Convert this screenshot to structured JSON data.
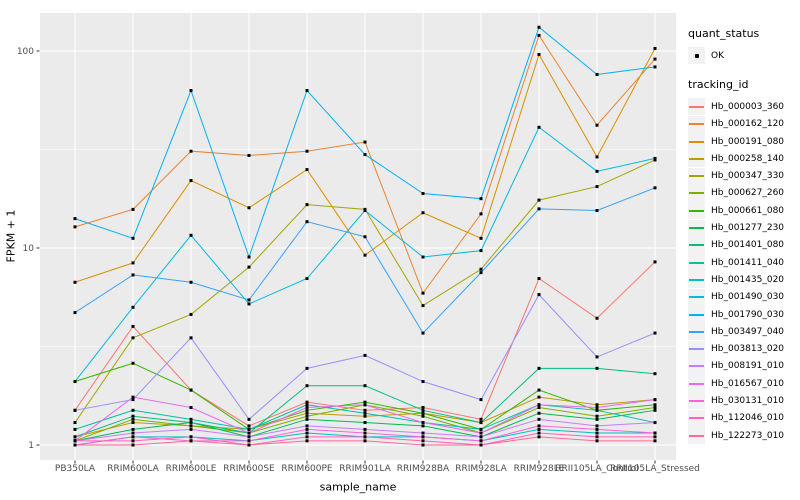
{
  "axes": {
    "x_title": "sample_name",
    "y_title": "FPKM + 1",
    "y_tick_labels": [
      "1",
      "10",
      "100"
    ]
  },
  "legend": {
    "quant_status_title": "quant_status",
    "ok_label": "OK",
    "ok_point_color": "#000000",
    "tracking_title": "tracking_id"
  },
  "panel": {
    "background_color": "#ebebeb",
    "gridline_color": "#ffffff",
    "tick_text_color": "#4d4d4d"
  },
  "chart_data": {
    "type": "line",
    "x": [
      "PB350LA",
      "RRIM600LA",
      "RRIM600LE",
      "RRIM600SE",
      "RRIM600PE",
      "RRIM901LA",
      "RRIM928BA",
      "RRIM928LA",
      "RRIM928LE",
      "RRII105LA_Control",
      "RRII105LA_Stressed"
    ],
    "xlabel": "sample_name",
    "ylabel": "FPKM + 1",
    "yscale": "log10",
    "yticks": [
      1,
      10,
      100
    ],
    "ylim": [
      0.85,
      155
    ],
    "grid": true,
    "legend_position": "right",
    "point_marker": "small black square (quant_status OK)",
    "series": [
      {
        "name": "Hb_000003_360",
        "color": "#F8766D",
        "values": [
          1.5,
          4.0,
          1.9,
          1.25,
          1.65,
          1.5,
          1.55,
          1.35,
          7.0,
          4.4,
          8.5
        ]
      },
      {
        "name": "Hb_000162_120",
        "color": "#EA8331",
        "values": [
          12.8,
          15.7,
          31,
          29.5,
          31,
          34.5,
          5.9,
          14.9,
          120,
          42,
          91
        ]
      },
      {
        "name": "Hb_000191_080",
        "color": "#D89000",
        "values": [
          6.7,
          8.4,
          22,
          16,
          25,
          9.2,
          15.1,
          11.2,
          96,
          29,
          103
        ]
      },
      {
        "name": "Hb_000258_140",
        "color": "#C09B00",
        "values": [
          1.1,
          1.3,
          1.25,
          1.2,
          1.45,
          1.4,
          1.45,
          1.3,
          1.75,
          1.6,
          1.7
        ]
      },
      {
        "name": "Hb_000347_330",
        "color": "#A3A500",
        "values": [
          1.3,
          3.5,
          4.6,
          8.0,
          16.6,
          15.7,
          5.1,
          7.8,
          17.5,
          20.5,
          28
        ]
      },
      {
        "name": "Hb_000627_260",
        "color": "#7CAE00",
        "values": [
          1.05,
          1.35,
          1.25,
          1.15,
          1.4,
          1.6,
          1.4,
          1.15,
          1.55,
          1.4,
          1.55
        ]
      },
      {
        "name": "Hb_000661_080",
        "color": "#39B600",
        "values": [
          2.1,
          2.6,
          1.9,
          1.2,
          1.5,
          1.65,
          1.45,
          1.2,
          1.9,
          1.5,
          1.6
        ]
      },
      {
        "name": "Hb_001277_230",
        "color": "#00BB4E",
        "values": [
          1.05,
          1.2,
          1.3,
          1.1,
          1.35,
          1.3,
          1.25,
          1.1,
          1.45,
          1.35,
          1.5
        ]
      },
      {
        "name": "Hb_001401_080",
        "color": "#00BF7D",
        "values": [
          1.1,
          1.4,
          1.3,
          1.15,
          2.0,
          2.0,
          1.5,
          1.3,
          2.45,
          2.45,
          2.3
        ]
      },
      {
        "name": "Hb_001411_040",
        "color": "#00C1A3",
        "values": [
          1.2,
          1.5,
          1.35,
          1.2,
          1.6,
          1.45,
          1.3,
          1.2,
          1.6,
          1.5,
          1.3
        ]
      },
      {
        "name": "Hb_001435_020",
        "color": "#00BFC4",
        "values": [
          1.0,
          1.1,
          1.1,
          1.05,
          1.15,
          1.1,
          1.1,
          1.05,
          1.2,
          1.15,
          1.15
        ]
      },
      {
        "name": "Hb_001490_030",
        "color": "#00BAE0",
        "values": [
          2.1,
          5.0,
          11.6,
          5.2,
          7.0,
          15.5,
          9.0,
          9.7,
          41,
          24.5,
          28.5
        ]
      },
      {
        "name": "Hb_001790_030",
        "color": "#00B0F6",
        "values": [
          14.1,
          11.2,
          63,
          9.0,
          63,
          29.8,
          18.9,
          17.8,
          132,
          76,
          83
        ]
      },
      {
        "name": "Hb_003497_040",
        "color": "#35A2FF",
        "values": [
          4.7,
          7.3,
          6.7,
          5.45,
          13.6,
          11.4,
          3.7,
          7.5,
          15.8,
          15.5,
          20.2
        ]
      },
      {
        "name": "Hb_003813_020",
        "color": "#9590FF",
        "values": [
          1.5,
          1.7,
          3.5,
          1.35,
          2.45,
          2.85,
          2.1,
          1.7,
          5.8,
          2.8,
          3.7
        ]
      },
      {
        "name": "Hb_008191_010",
        "color": "#C77CFF",
        "values": [
          1.05,
          1.15,
          1.2,
          1.1,
          1.25,
          1.2,
          1.15,
          1.1,
          1.35,
          1.25,
          1.3
        ]
      },
      {
        "name": "Hb_016567_010",
        "color": "#E76BF3",
        "values": [
          1.05,
          1.75,
          1.55,
          1.15,
          1.55,
          1.6,
          1.3,
          1.15,
          1.6,
          1.55,
          1.7
        ]
      },
      {
        "name": "Hb_030131_010",
        "color": "#FA62DB",
        "values": [
          1.0,
          1.1,
          1.05,
          1.05,
          1.2,
          1.15,
          1.1,
          1.05,
          1.25,
          1.2,
          1.15
        ]
      },
      {
        "name": "Hb_112046_010",
        "color": "#FF62BC",
        "values": [
          1.05,
          1.05,
          1.1,
          1.0,
          1.1,
          1.1,
          1.05,
          1.0,
          1.15,
          1.1,
          1.1
        ]
      },
      {
        "name": "Hb_122273_010",
        "color": "#FF6A98",
        "values": [
          1.0,
          1.0,
          1.05,
          1.0,
          1.05,
          1.05,
          1.0,
          1.0,
          1.1,
          1.05,
          1.05
        ]
      }
    ]
  }
}
